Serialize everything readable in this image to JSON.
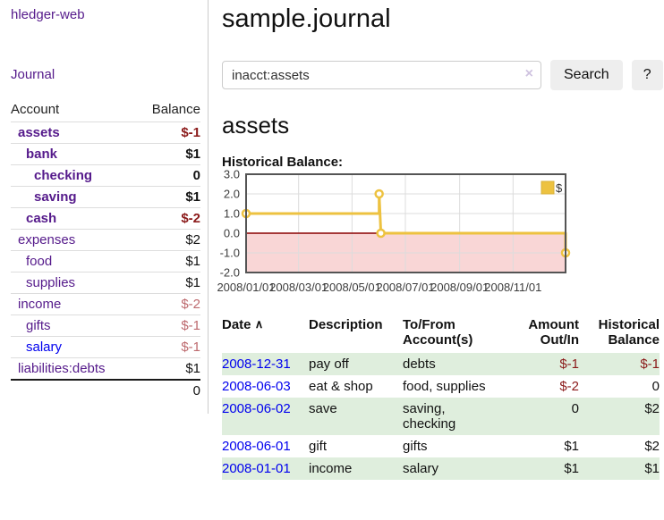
{
  "app": {
    "title": "hledger-web"
  },
  "sidebar": {
    "nav_journal": "Journal",
    "accounts": {
      "headers": {
        "account": "Account",
        "balance": "Balance"
      },
      "rows": [
        {
          "name": "assets",
          "balance": "$-1"
        },
        {
          "name": "bank",
          "balance": "$1"
        },
        {
          "name": "checking",
          "balance": "0"
        },
        {
          "name": "saving",
          "balance": "$1"
        },
        {
          "name": "cash",
          "balance": "$-2"
        },
        {
          "name": "expenses",
          "balance": "$2"
        },
        {
          "name": "food",
          "balance": "$1"
        },
        {
          "name": "supplies",
          "balance": "$1"
        },
        {
          "name": "income",
          "balance": "$-2"
        },
        {
          "name": "gifts",
          "balance": "$-1"
        },
        {
          "name": "salary",
          "balance": "$-1"
        },
        {
          "name": "liabilities:debts",
          "balance": "$1"
        }
      ],
      "total": "0"
    }
  },
  "main": {
    "title": "sample.journal",
    "search": {
      "value": "inacct:assets",
      "button": "Search",
      "help": "?"
    },
    "account_heading": "assets",
    "register": {
      "headers": [
        "Date",
        "Description",
        "To/From Account(s)",
        "Amount Out/In",
        "Historical Balance"
      ],
      "rows": [
        {
          "date": "2008-12-31",
          "description": "pay off",
          "accounts": "debts",
          "amount": "$-1",
          "balance": "$-1"
        },
        {
          "date": "2008-06-03",
          "description": "eat & shop",
          "accounts": "food, supplies",
          "amount": "$-2",
          "balance": "0"
        },
        {
          "date": "2008-06-02",
          "description": "save",
          "accounts": "saving, checking",
          "amount": "0",
          "balance": "$2"
        },
        {
          "date": "2008-06-01",
          "description": "gift",
          "accounts": "gifts",
          "amount": "$1",
          "balance": "$2"
        },
        {
          "date": "2008-01-01",
          "description": "income",
          "accounts": "salary",
          "amount": "$1",
          "balance": "$1"
        }
      ]
    }
  },
  "icons": {
    "sort_ascending": "∧",
    "clear_search": "×"
  },
  "chart_data": {
    "type": "line",
    "title": "Historical Balance:",
    "legend": {
      "label": "$",
      "position": "top-right"
    },
    "ylim": [
      -2,
      3
    ],
    "y_ticks": [
      {
        "label": "3.0",
        "value": 3
      },
      {
        "label": "2.0",
        "value": 2
      },
      {
        "label": "1.0",
        "value": 1
      },
      {
        "label": "0.0",
        "value": 0
      },
      {
        "label": "-1.0",
        "value": -1
      },
      {
        "label": "-2.0",
        "value": -2
      }
    ],
    "x_range_days": 365,
    "x_ticks": [
      {
        "label": "2008/01/01",
        "day": 0
      },
      {
        "label": "2008/03/01",
        "day": 60
      },
      {
        "label": "2008/05/01",
        "day": 121
      },
      {
        "label": "2008/07/01",
        "day": 182
      },
      {
        "label": "2008/09/01",
        "day": 244
      },
      {
        "label": "2008/11/01",
        "day": 305
      }
    ],
    "series": [
      {
        "name": "$",
        "color": "#edc240",
        "step_points": [
          {
            "date": "2008-01-01",
            "day": 0,
            "value": 1
          },
          {
            "date": "2008-06-01",
            "day": 152,
            "value": 1
          },
          {
            "date": "2008-06-01",
            "day": 152,
            "value": 2
          },
          {
            "date": "2008-06-03",
            "day": 154,
            "value": 0
          },
          {
            "date": "2008-12-31",
            "day": 365,
            "value": 0
          },
          {
            "date": "2008-12-31",
            "day": 365,
            "value": -1
          }
        ],
        "markers": [
          {
            "date": "2008-01-01",
            "day": 0,
            "value": 1
          },
          {
            "date": "2008-06-01",
            "day": 152,
            "value": 2
          },
          {
            "date": "2008-06-03",
            "day": 154,
            "value": 0
          },
          {
            "date": "2008-12-31",
            "day": 365,
            "value": -1
          }
        ]
      }
    ],
    "colors": {
      "negative_region": "#f9d6d6",
      "zero_line": "#8b0000",
      "grid": "#dcdcdc",
      "border": "#545454"
    }
  }
}
